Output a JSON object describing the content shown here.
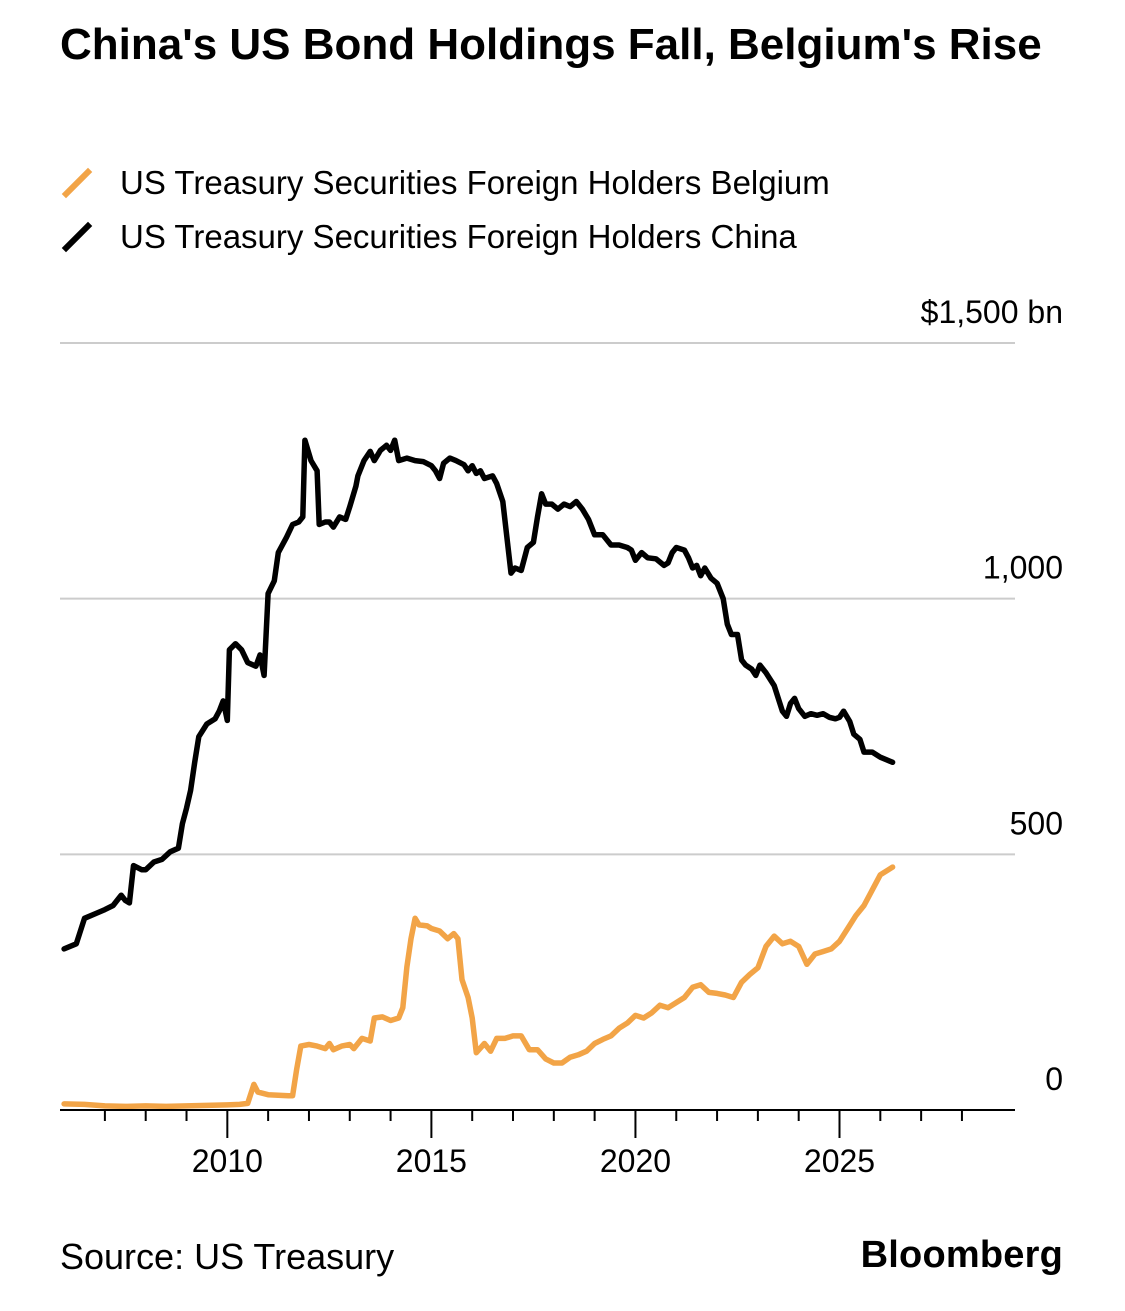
{
  "header": {
    "title": "China's US Bond Holdings Fall, Belgium's Rise"
  },
  "footer": {
    "source": "Source: US Treasury",
    "brand": "Bloomberg"
  },
  "colors": {
    "belgium": "#f2a447",
    "china": "#000000",
    "grid": "#cccccc",
    "axis": "#000000"
  },
  "chart_data": {
    "type": "line",
    "title": "China's US Bond Holdings Fall, Belgium's Rise",
    "xlabel": "",
    "ylabel": "",
    "xlim": [
      2005.9,
      2029.3
    ],
    "ylim": [
      0,
      1500
    ],
    "y_ticks": [
      {
        "value": 0,
        "label": "0"
      },
      {
        "value": 500,
        "label": "500"
      },
      {
        "value": 1000,
        "label": "1,000"
      },
      {
        "value": 1500,
        "label": "$1,500 bn"
      }
    ],
    "x_tick_labels": [
      {
        "value": 2010,
        "label": "2010"
      },
      {
        "value": 2015,
        "label": "2015"
      },
      {
        "value": 2020,
        "label": "2020"
      },
      {
        "value": 2025,
        "label": "2025"
      }
    ],
    "x_minor_ticks": [
      2007,
      2008,
      2009,
      2011,
      2012,
      2013,
      2014,
      2016,
      2017,
      2018,
      2019,
      2021,
      2022,
      2023,
      2024,
      2026,
      2027,
      2028
    ],
    "legend": "top-left",
    "series": [
      {
        "name": "US Treasury Securities Foreign Holders Belgium",
        "color": "#f2a447",
        "points": [
          [
            2006.0,
            12
          ],
          [
            2006.5,
            11
          ],
          [
            2007.0,
            8
          ],
          [
            2007.5,
            7
          ],
          [
            2008.0,
            8
          ],
          [
            2008.5,
            7
          ],
          [
            2009.0,
            8
          ],
          [
            2009.5,
            9
          ],
          [
            2010.0,
            10
          ],
          [
            2010.3,
            11
          ],
          [
            2010.5,
            13
          ],
          [
            2010.65,
            50
          ],
          [
            2010.75,
            35
          ],
          [
            2011.0,
            30
          ],
          [
            2011.5,
            28
          ],
          [
            2011.6,
            28
          ],
          [
            2011.7,
            80
          ],
          [
            2011.8,
            125
          ],
          [
            2012.0,
            128
          ],
          [
            2012.2,
            125
          ],
          [
            2012.4,
            120
          ],
          [
            2012.5,
            130
          ],
          [
            2012.6,
            118
          ],
          [
            2012.8,
            125
          ],
          [
            2013.0,
            128
          ],
          [
            2013.1,
            120
          ],
          [
            2013.3,
            140
          ],
          [
            2013.5,
            135
          ],
          [
            2013.6,
            180
          ],
          [
            2013.8,
            182
          ],
          [
            2014.0,
            175
          ],
          [
            2014.2,
            180
          ],
          [
            2014.3,
            200
          ],
          [
            2014.4,
            280
          ],
          [
            2014.5,
            335
          ],
          [
            2014.6,
            375
          ],
          [
            2014.7,
            362
          ],
          [
            2014.9,
            360
          ],
          [
            2015.0,
            355
          ],
          [
            2015.2,
            350
          ],
          [
            2015.4,
            335
          ],
          [
            2015.55,
            345
          ],
          [
            2015.65,
            335
          ],
          [
            2015.75,
            255
          ],
          [
            2015.9,
            220
          ],
          [
            2016.0,
            180
          ],
          [
            2016.1,
            112
          ],
          [
            2016.3,
            130
          ],
          [
            2016.45,
            115
          ],
          [
            2016.6,
            140
          ],
          [
            2016.8,
            140
          ],
          [
            2017.0,
            145
          ],
          [
            2017.2,
            145
          ],
          [
            2017.4,
            118
          ],
          [
            2017.6,
            118
          ],
          [
            2017.8,
            100
          ],
          [
            2018.0,
            92
          ],
          [
            2018.2,
            92
          ],
          [
            2018.4,
            103
          ],
          [
            2018.6,
            108
          ],
          [
            2018.8,
            115
          ],
          [
            2019.0,
            130
          ],
          [
            2019.2,
            138
          ],
          [
            2019.4,
            145
          ],
          [
            2019.6,
            160
          ],
          [
            2019.8,
            170
          ],
          [
            2020.0,
            185
          ],
          [
            2020.2,
            180
          ],
          [
            2020.4,
            190
          ],
          [
            2020.6,
            205
          ],
          [
            2020.8,
            200
          ],
          [
            2021.0,
            210
          ],
          [
            2021.2,
            220
          ],
          [
            2021.4,
            240
          ],
          [
            2021.6,
            245
          ],
          [
            2021.8,
            230
          ],
          [
            2022.0,
            228
          ],
          [
            2022.2,
            225
          ],
          [
            2022.4,
            220
          ],
          [
            2022.6,
            250
          ],
          [
            2022.8,
            265
          ],
          [
            2023.0,
            278
          ],
          [
            2023.2,
            320
          ],
          [
            2023.4,
            340
          ],
          [
            2023.6,
            325
          ],
          [
            2023.8,
            330
          ],
          [
            2024.0,
            320
          ],
          [
            2024.2,
            285
          ],
          [
            2024.4,
            305
          ],
          [
            2024.6,
            310
          ],
          [
            2024.8,
            315
          ],
          [
            2025.0,
            330
          ],
          [
            2025.2,
            355
          ],
          [
            2025.4,
            380
          ],
          [
            2025.6,
            400
          ],
          [
            2025.8,
            430
          ],
          [
            2026.0,
            460
          ],
          [
            2026.2,
            470
          ],
          [
            2026.3,
            475
          ]
        ]
      },
      {
        "name": "US Treasury Securities Foreign Holders China",
        "color": "#000000",
        "points": [
          [
            2006.0,
            315
          ],
          [
            2006.3,
            325
          ],
          [
            2006.5,
            375
          ],
          [
            2006.8,
            385
          ],
          [
            2007.0,
            392
          ],
          [
            2007.2,
            400
          ],
          [
            2007.4,
            420
          ],
          [
            2007.5,
            410
          ],
          [
            2007.6,
            405
          ],
          [
            2007.7,
            478
          ],
          [
            2007.9,
            470
          ],
          [
            2008.0,
            470
          ],
          [
            2008.2,
            485
          ],
          [
            2008.4,
            490
          ],
          [
            2008.6,
            505
          ],
          [
            2008.8,
            512
          ],
          [
            2008.9,
            560
          ],
          [
            2009.0,
            590
          ],
          [
            2009.1,
            625
          ],
          [
            2009.2,
            680
          ],
          [
            2009.3,
            730
          ],
          [
            2009.5,
            755
          ],
          [
            2009.7,
            765
          ],
          [
            2009.8,
            780
          ],
          [
            2009.9,
            800
          ],
          [
            2010.0,
            762
          ],
          [
            2010.05,
            900
          ],
          [
            2010.2,
            912
          ],
          [
            2010.35,
            900
          ],
          [
            2010.5,
            875
          ],
          [
            2010.7,
            868
          ],
          [
            2010.8,
            890
          ],
          [
            2010.9,
            850
          ],
          [
            2011.0,
            1010
          ],
          [
            2011.15,
            1035
          ],
          [
            2011.25,
            1090
          ],
          [
            2011.45,
            1120
          ],
          [
            2011.6,
            1145
          ],
          [
            2011.75,
            1150
          ],
          [
            2011.85,
            1160
          ],
          [
            2011.9,
            1310
          ],
          [
            2012.05,
            1270
          ],
          [
            2012.2,
            1250
          ],
          [
            2012.25,
            1145
          ],
          [
            2012.4,
            1150
          ],
          [
            2012.5,
            1150
          ],
          [
            2012.6,
            1140
          ],
          [
            2012.75,
            1160
          ],
          [
            2012.9,
            1155
          ],
          [
            2013.0,
            1180
          ],
          [
            2013.15,
            1220
          ],
          [
            2013.2,
            1240
          ],
          [
            2013.35,
            1270
          ],
          [
            2013.5,
            1288
          ],
          [
            2013.6,
            1270
          ],
          [
            2013.75,
            1290
          ],
          [
            2013.9,
            1300
          ],
          [
            2014.0,
            1290
          ],
          [
            2014.1,
            1310
          ],
          [
            2014.2,
            1270
          ],
          [
            2014.4,
            1275
          ],
          [
            2014.6,
            1270
          ],
          [
            2014.8,
            1268
          ],
          [
            2015.0,
            1260
          ],
          [
            2015.1,
            1250
          ],
          [
            2015.2,
            1235
          ],
          [
            2015.3,
            1265
          ],
          [
            2015.45,
            1275
          ],
          [
            2015.6,
            1270
          ],
          [
            2015.8,
            1262
          ],
          [
            2015.9,
            1250
          ],
          [
            2016.0,
            1260
          ],
          [
            2016.1,
            1245
          ],
          [
            2016.2,
            1250
          ],
          [
            2016.3,
            1235
          ],
          [
            2016.5,
            1240
          ],
          [
            2016.6,
            1225
          ],
          [
            2016.75,
            1190
          ],
          [
            2016.85,
            1120
          ],
          [
            2016.95,
            1050
          ],
          [
            2017.05,
            1060
          ],
          [
            2017.2,
            1055
          ],
          [
            2017.35,
            1100
          ],
          [
            2017.5,
            1110
          ],
          [
            2017.6,
            1160
          ],
          [
            2017.7,
            1205
          ],
          [
            2017.8,
            1185
          ],
          [
            2017.95,
            1185
          ],
          [
            2018.1,
            1175
          ],
          [
            2018.25,
            1185
          ],
          [
            2018.4,
            1180
          ],
          [
            2018.55,
            1190
          ],
          [
            2018.7,
            1175
          ],
          [
            2018.85,
            1155
          ],
          [
            2019.0,
            1125
          ],
          [
            2019.2,
            1125
          ],
          [
            2019.4,
            1105
          ],
          [
            2019.6,
            1105
          ],
          [
            2019.8,
            1100
          ],
          [
            2019.9,
            1095
          ],
          [
            2020.0,
            1075
          ],
          [
            2020.15,
            1090
          ],
          [
            2020.3,
            1080
          ],
          [
            2020.5,
            1078
          ],
          [
            2020.7,
            1065
          ],
          [
            2020.8,
            1070
          ],
          [
            2020.9,
            1090
          ],
          [
            2021.0,
            1100
          ],
          [
            2021.2,
            1095
          ],
          [
            2021.3,
            1080
          ],
          [
            2021.4,
            1060
          ],
          [
            2021.5,
            1065
          ],
          [
            2021.6,
            1045
          ],
          [
            2021.7,
            1060
          ],
          [
            2021.85,
            1040
          ],
          [
            2022.0,
            1030
          ],
          [
            2022.15,
            1000
          ],
          [
            2022.25,
            950
          ],
          [
            2022.35,
            930
          ],
          [
            2022.5,
            930
          ],
          [
            2022.6,
            880
          ],
          [
            2022.7,
            870
          ],
          [
            2022.85,
            862
          ],
          [
            2022.95,
            850
          ],
          [
            2023.05,
            870
          ],
          [
            2023.2,
            855
          ],
          [
            2023.4,
            830
          ],
          [
            2023.6,
            780
          ],
          [
            2023.7,
            770
          ],
          [
            2023.8,
            795
          ],
          [
            2023.9,
            805
          ],
          [
            2024.0,
            785
          ],
          [
            2024.15,
            770
          ],
          [
            2024.3,
            775
          ],
          [
            2024.45,
            772
          ],
          [
            2024.6,
            775
          ],
          [
            2024.75,
            768
          ],
          [
            2024.9,
            765
          ],
          [
            2025.0,
            768
          ],
          [
            2025.1,
            780
          ],
          [
            2025.25,
            760
          ],
          [
            2025.35,
            735
          ],
          [
            2025.5,
            725
          ],
          [
            2025.6,
            700
          ],
          [
            2025.8,
            700
          ],
          [
            2026.0,
            690
          ],
          [
            2026.3,
            680
          ]
        ]
      }
    ]
  }
}
